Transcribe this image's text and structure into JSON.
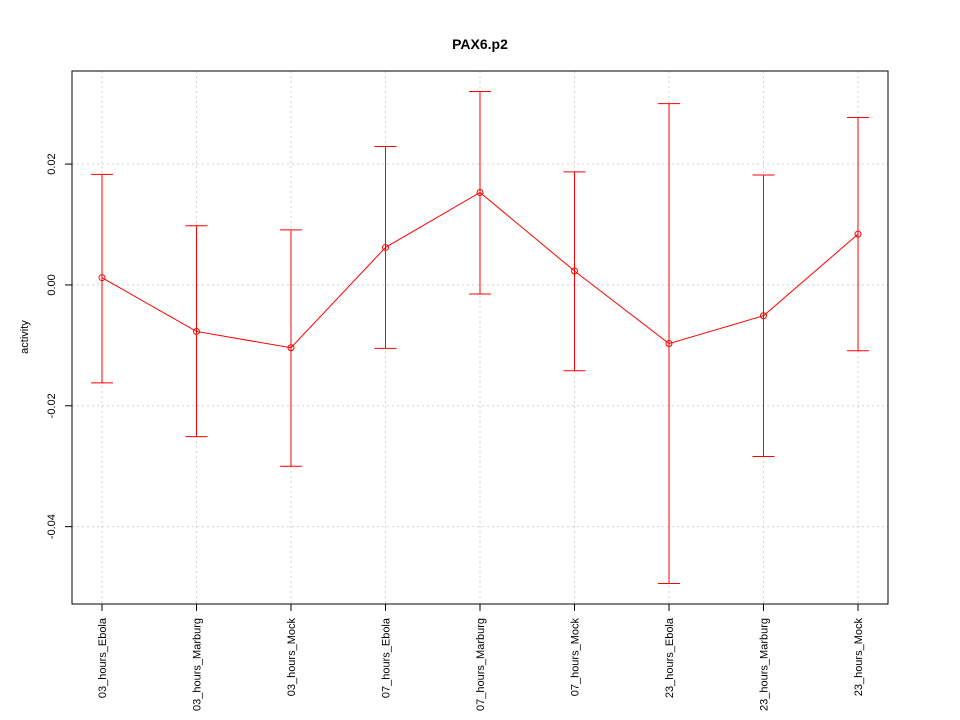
{
  "chart_data": {
    "type": "line",
    "title": "PAX6.p2",
    "xlabel": "",
    "ylabel": "activity",
    "categories": [
      "03_hours_Ebola",
      "03_hours_Marburg",
      "03_hours_Mock",
      "07_hours_Ebola",
      "07_hours_Marburg",
      "07_hours_Mock",
      "23_hours_Ebola",
      "23_hours_Marburg",
      "23_hours_Mock"
    ],
    "series": [
      {
        "values": [
          0.0012,
          -0.0077,
          -0.0104,
          0.0062,
          0.0153,
          0.0023,
          -0.0097,
          -0.0051,
          0.0084
        ],
        "lower": [
          -0.0162,
          -0.0251,
          -0.03,
          -0.0105,
          -0.0015,
          -0.0142,
          -0.0494,
          -0.0284,
          -0.0109
        ],
        "upper": [
          0.0183,
          0.0098,
          0.0091,
          0.0229,
          0.032,
          0.0187,
          0.03,
          0.0182,
          0.0277
        ]
      }
    ],
    "yticks": [
      0.02,
      0.0,
      -0.02,
      -0.04
    ],
    "ytick_labels": [
      "0.02",
      "0.00",
      "-0.02",
      "-0.04"
    ],
    "ylim": [
      -0.0528,
      0.0354
    ],
    "grid": true,
    "colors": {
      "series": "#ff0000",
      "grid": "#d3d3d3",
      "axis": "#000000"
    }
  }
}
